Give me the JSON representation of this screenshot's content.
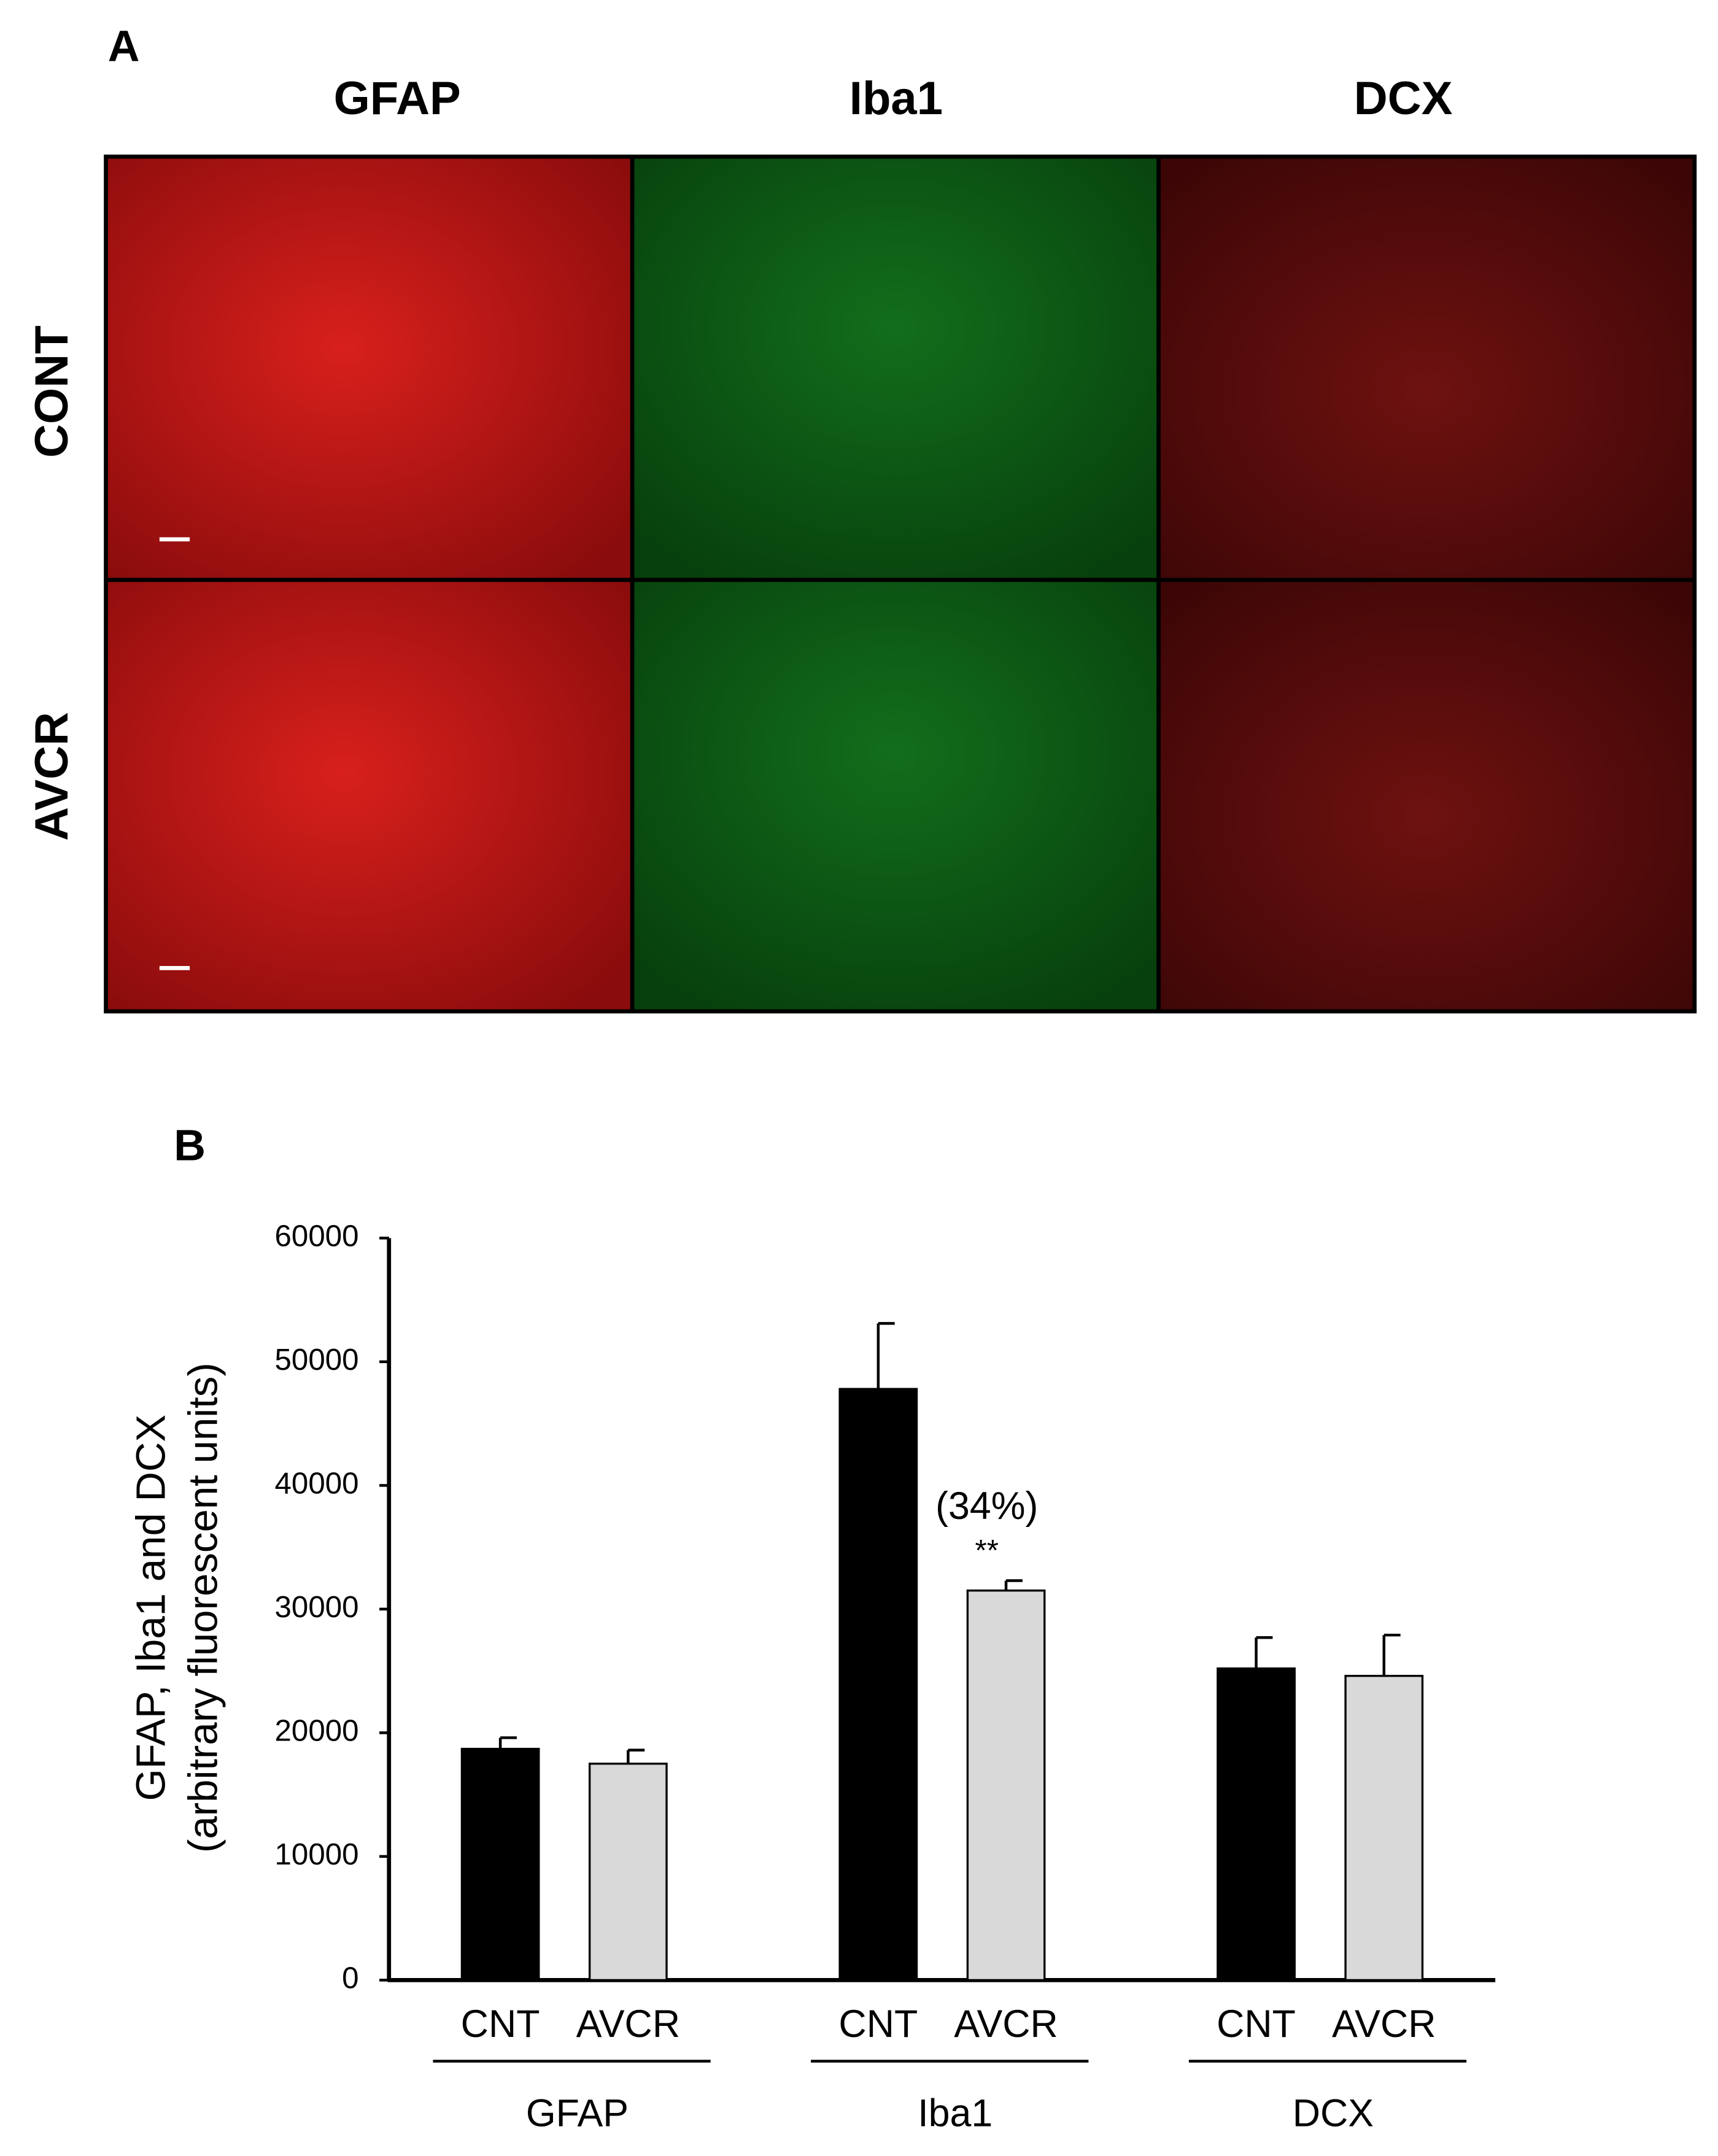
{
  "panel_a": {
    "label": "A",
    "columns": [
      "GFAP",
      "Iba1",
      "DCX"
    ],
    "rows": [
      "CONT",
      "AVCR"
    ]
  },
  "chart_data": {
    "type": "bar",
    "panel_label": "B",
    "y_label": [
      "GFAP, Iba1 and DCX",
      "(arbitrary fluorescent units)"
    ],
    "categories": [
      "GFAP",
      "Iba1",
      "DCX"
    ],
    "series": [
      {
        "name": "CNT",
        "color": "#000000",
        "values": [
          18700,
          47800,
          25200
        ],
        "errors": [
          900,
          5300,
          2500
        ]
      },
      {
        "name": "AVCR",
        "color": "#d9d9d9",
        "values": [
          17500,
          31500,
          24600
        ],
        "errors": [
          1100,
          800,
          3300
        ]
      }
    ],
    "annotations": [
      "(34%)",
      "**"
    ],
    "ylim": [
      0,
      60000
    ],
    "yticks": [
      0,
      10000,
      20000,
      30000,
      40000,
      50000,
      60000
    ]
  }
}
